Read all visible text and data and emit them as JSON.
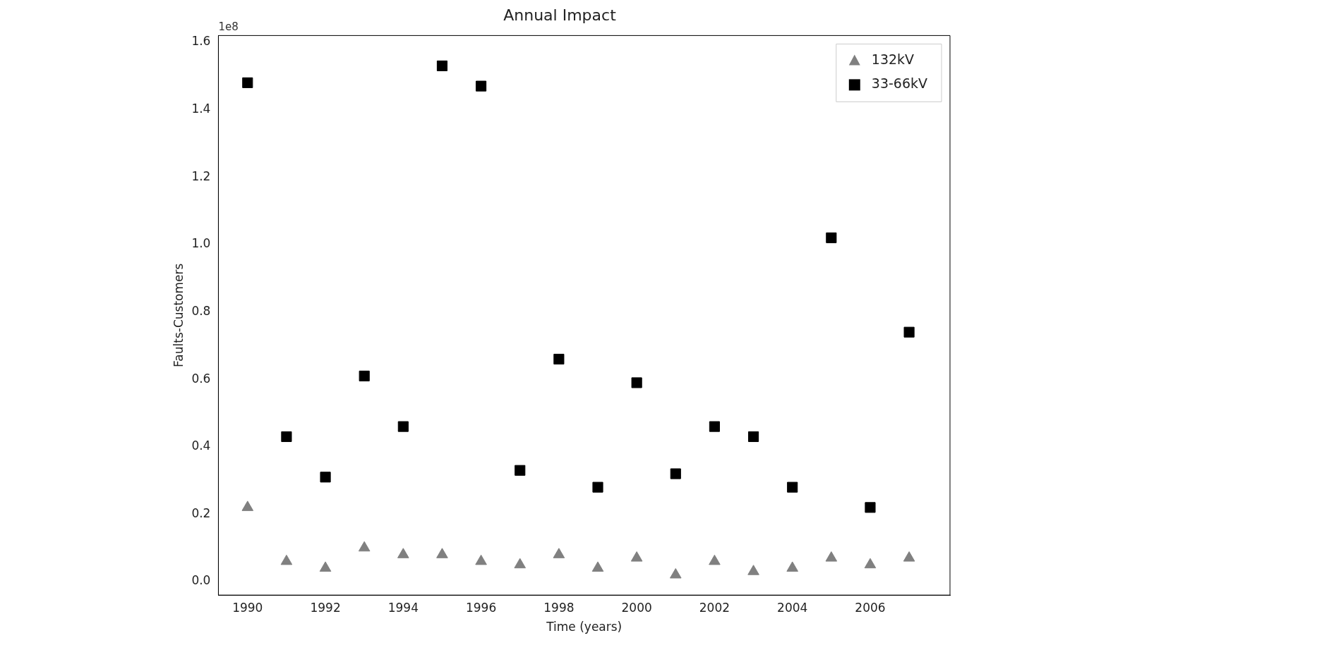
{
  "chart_data": {
    "type": "scatter",
    "title": "Annual Impact",
    "xlabel": "Time (years)",
    "ylabel": "Faults-Customers",
    "annotations": [
      "1e8"
    ],
    "x": [
      1990,
      1991,
      1992,
      1993,
      1994,
      1995,
      1996,
      1997,
      1998,
      1999,
      2000,
      2001,
      2002,
      2003,
      2004,
      2005,
      2006,
      2007
    ],
    "series": [
      {
        "name": "132kV",
        "color": "#808080",
        "marker": "triangle",
        "values": [
          0.22,
          0.06,
          0.04,
          0.1,
          0.08,
          0.08,
          0.06,
          0.05,
          0.08,
          0.04,
          0.07,
          0.02,
          0.06,
          0.03,
          0.04,
          0.07,
          0.05,
          0.07
        ]
      },
      {
        "name": "33-66kV",
        "color": "#000000",
        "marker": "square",
        "values": [
          1.48,
          0.43,
          0.31,
          0.61,
          0.46,
          1.53,
          1.47,
          0.33,
          0.66,
          0.28,
          0.59,
          0.32,
          0.46,
          0.43,
          0.28,
          1.02,
          0.22,
          0.74
        ]
      }
    ],
    "xlim": [
      1989.25,
      2008.05
    ],
    "xticks": [
      1990,
      1992,
      1994,
      1996,
      1998,
      2000,
      2002,
      2004,
      2006
    ],
    "ylim": [
      -0.04,
      1.62
    ],
    "yticks": [
      {
        "value": 0,
        "label": "0.0"
      },
      0.2,
      0.4,
      0.6,
      0.8,
      {
        "value": 1,
        "label": "1.0"
      },
      1.2,
      1.4,
      1.6
    ],
    "grid": false,
    "legend": "top right"
  }
}
